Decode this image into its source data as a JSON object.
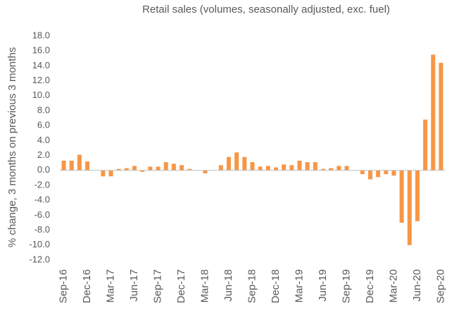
{
  "chart_data": {
    "type": "bar",
    "title": "Retail sales (volumes, seasonally adjusted, exc. fuel)",
    "y_label": "% change, 3 months on previous 3 months",
    "color": "#f79646",
    "categories": [
      "Sep-16",
      null,
      null,
      "Dec-16",
      null,
      null,
      "Mar-17",
      null,
      null,
      "Jun-17",
      null,
      null,
      "Sep-17",
      null,
      null,
      "Dec-17",
      null,
      null,
      "Mar-18",
      null,
      null,
      "Jun-18",
      null,
      null,
      "Sep-18",
      null,
      null,
      "Dec-18",
      null,
      null,
      "Mar-19",
      null,
      null,
      "Jun-19",
      null,
      null,
      "Sep-19",
      null,
      null,
      "Dec-19",
      null,
      null,
      "Mar-20",
      null,
      null,
      "Jun-20",
      null,
      null,
      "Sep-20"
    ],
    "values": [
      1.3,
      1.3,
      2.1,
      1.2,
      0.0,
      -0.8,
      -0.8,
      0.2,
      0.3,
      0.6,
      -0.2,
      0.5,
      0.5,
      1.1,
      0.9,
      0.7,
      0.2,
      0.0,
      -0.4,
      0.0,
      0.7,
      1.8,
      2.4,
      1.8,
      1.1,
      0.5,
      0.6,
      0.4,
      0.8,
      0.7,
      1.3,
      1.1,
      1.1,
      0.2,
      0.3,
      0.6,
      0.6,
      0.0,
      -0.5,
      -1.2,
      -0.9,
      -0.5,
      -0.7,
      -7.0,
      -10.0,
      -6.8,
      6.8,
      15.5,
      14.4
    ],
    "ylim": [
      -12,
      18
    ],
    "yticks": [
      {
        "value": 18,
        "label": "18.0"
      },
      {
        "value": 16,
        "label": "16.0"
      },
      {
        "value": 14,
        "label": "14.0"
      },
      {
        "value": 12,
        "label": "12.0"
      },
      {
        "value": 10,
        "label": "10.0"
      },
      {
        "value": 8,
        "label": "8.0"
      },
      {
        "value": 6,
        "label": "6.0"
      },
      {
        "value": 4,
        "label": "4.0"
      },
      {
        "value": 2,
        "label": "2.0"
      },
      {
        "value": 0,
        "label": "0.0"
      },
      {
        "value": -2,
        "label": "-2.0"
      },
      {
        "value": -4,
        "label": "-4.0"
      },
      {
        "value": -6,
        "label": "-6.0"
      },
      {
        "value": -8,
        "label": "-8.0"
      },
      {
        "value": -10,
        "label": "-10.0"
      },
      {
        "value": -12,
        "label": "-12.0"
      }
    ],
    "grid": false
  }
}
